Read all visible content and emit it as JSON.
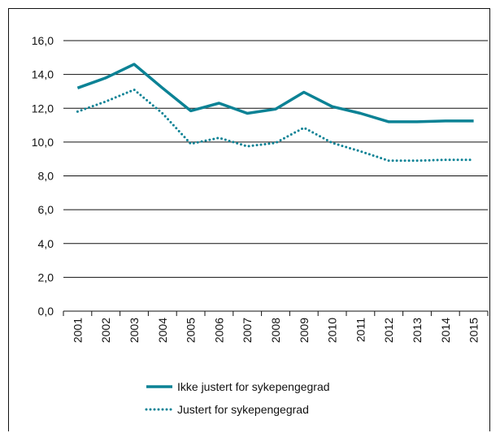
{
  "chart_data": {
    "type": "line",
    "title": "",
    "xlabel": "",
    "ylabel": "",
    "categories": [
      "2001",
      "2002",
      "2003",
      "2004",
      "2005",
      "2006",
      "2007",
      "2008",
      "2009",
      "2010",
      "2011",
      "2012",
      "2013",
      "2014",
      "2015"
    ],
    "series": [
      {
        "name": "Ikke justert for sykepengegrad",
        "style": "solid",
        "color": "#0b8295",
        "values": [
          13.2,
          13.8,
          14.6,
          13.2,
          11.85,
          12.3,
          11.7,
          11.95,
          12.95,
          12.1,
          11.7,
          11.2,
          11.2,
          11.25,
          11.25
        ]
      },
      {
        "name": "Justert for sykepengegrad",
        "style": "dotted",
        "color": "#0b8295",
        "values": [
          11.8,
          12.4,
          13.1,
          11.7,
          9.9,
          10.25,
          9.75,
          9.95,
          10.85,
          9.95,
          9.45,
          8.9,
          8.9,
          8.95,
          8.95
        ]
      }
    ],
    "ylim": [
      0,
      16
    ],
    "yticks": [
      "0,0",
      "2,0",
      "4,0",
      "6,0",
      "8,0",
      "10,0",
      "12,0",
      "14,0",
      "16,0"
    ],
    "grid": true,
    "legend": "bottom"
  }
}
